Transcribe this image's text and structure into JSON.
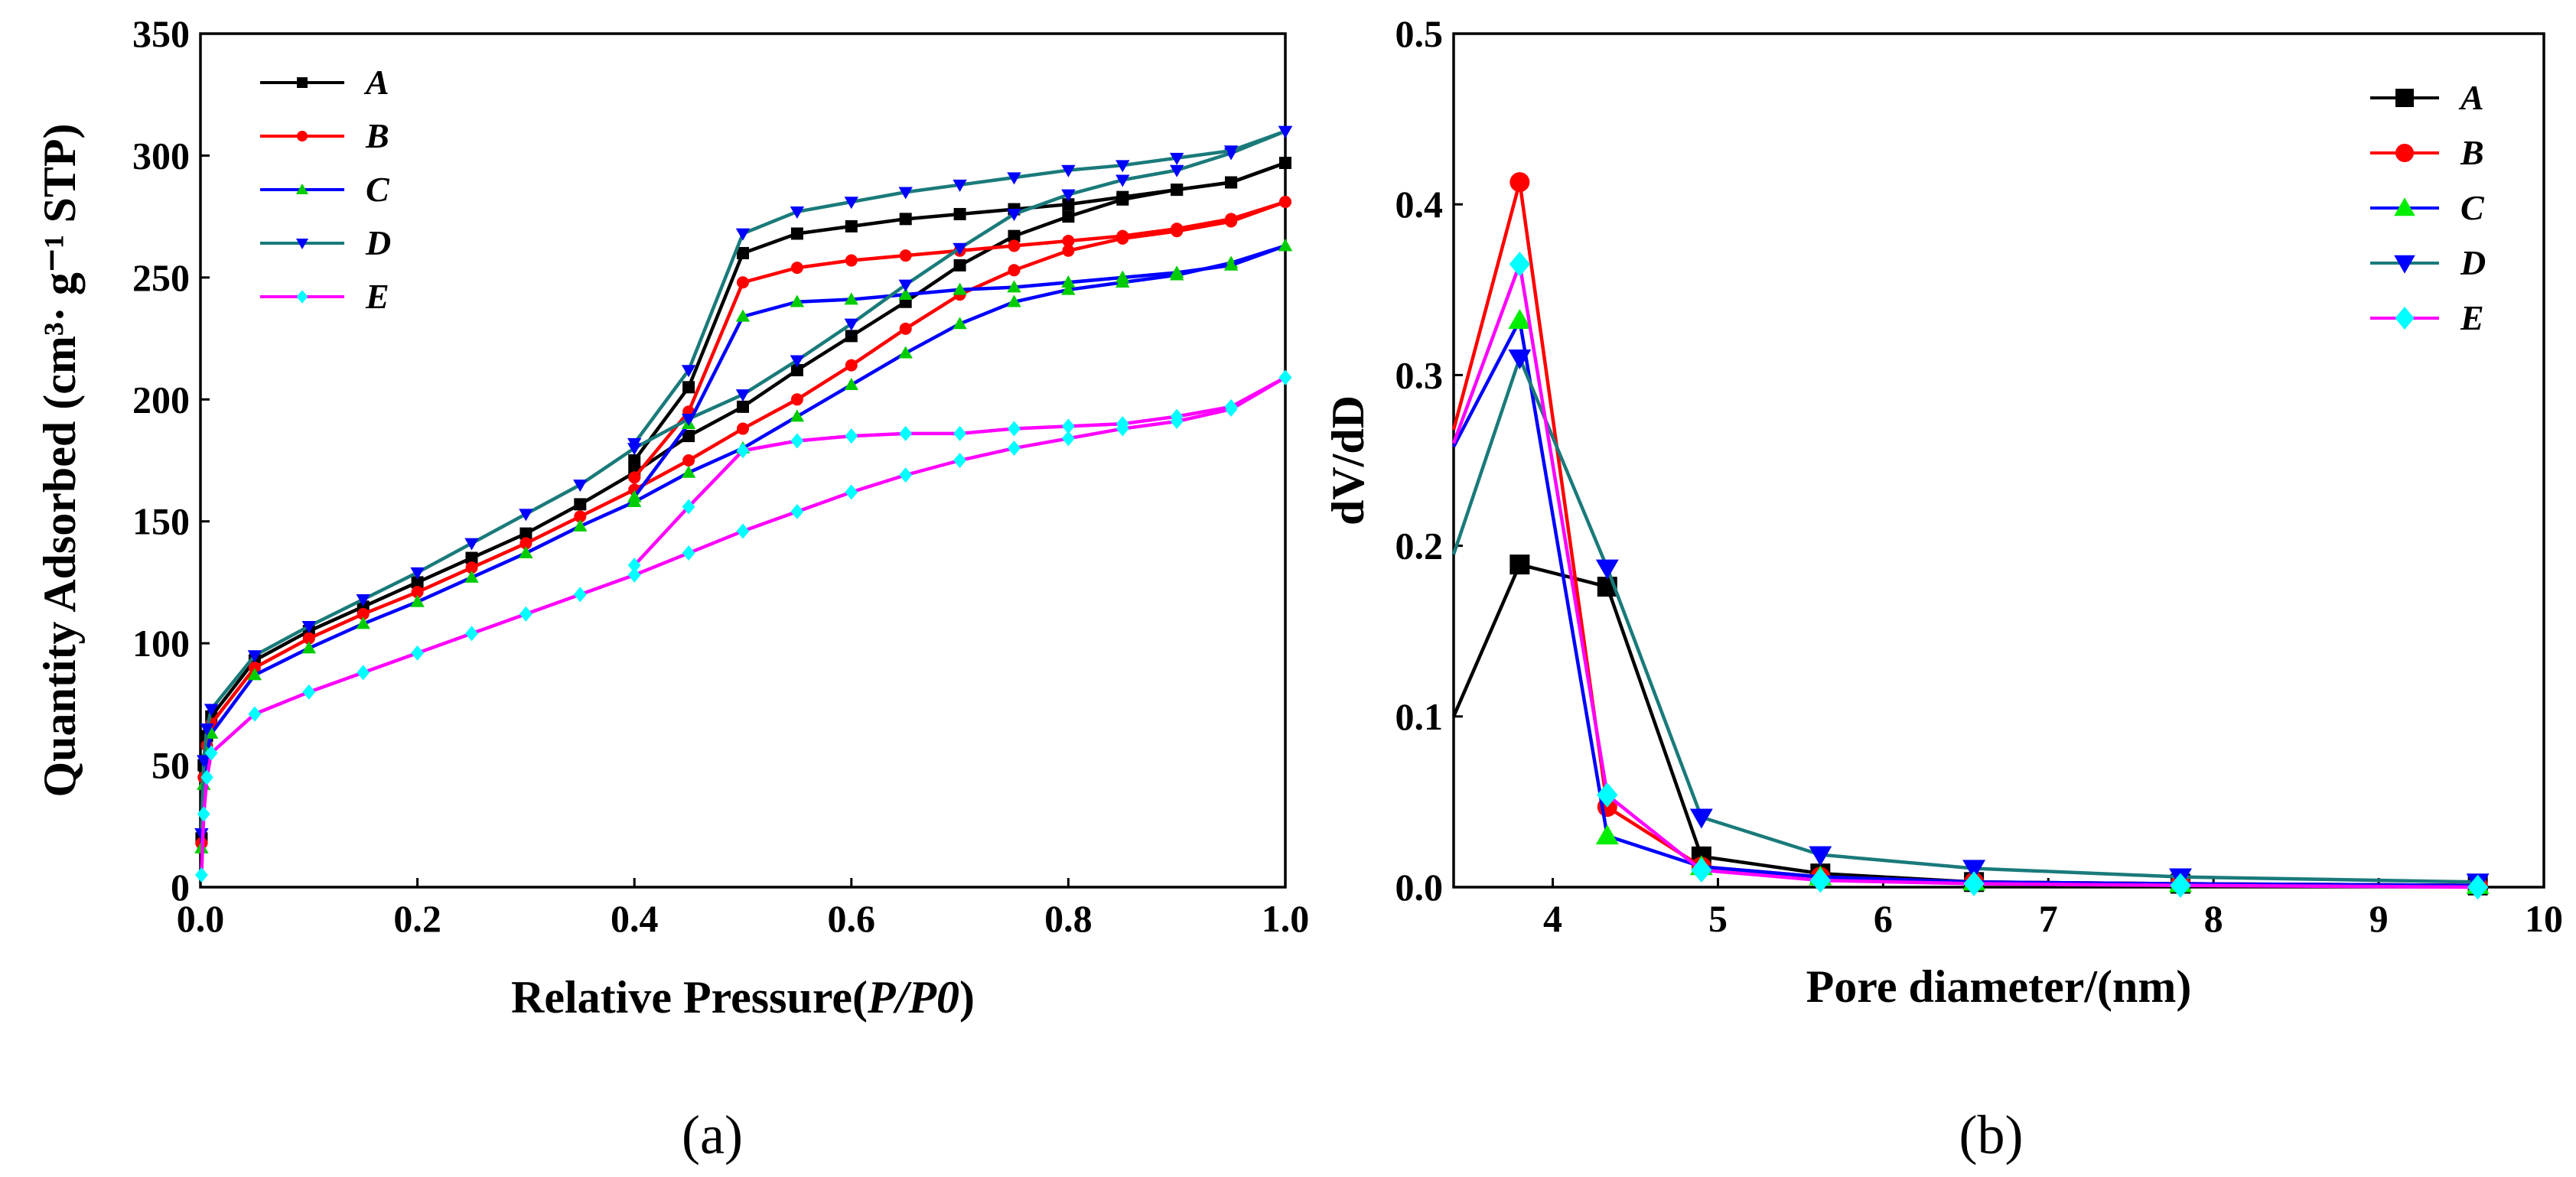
{
  "chart_data": [
    {
      "panel": "(a)",
      "type": "line",
      "xlabel_main": "Relative Pressure(",
      "xlabel_italic": "P/P0",
      "xlabel_end": ")",
      "ylabel_main": "Quantity  Adsorbed",
      "ylabel_units": "(cm³· g⁻¹ STP)",
      "xlim": [
        0,
        1.0
      ],
      "ylim": [
        0,
        350
      ],
      "xticks": [
        0.0,
        0.2,
        0.4,
        0.6,
        0.8,
        1.0
      ],
      "xtick_labels": [
        "0.0",
        "0.2",
        "0.4",
        "0.6",
        "0.8",
        "1.0"
      ],
      "yticks": [
        0,
        50,
        100,
        150,
        200,
        250,
        300,
        350
      ],
      "ytick_labels": [
        "0",
        "50",
        "100",
        "150",
        "200",
        "250",
        "300",
        "350"
      ],
      "legend": [
        "A",
        "B",
        "C",
        "D",
        "E"
      ],
      "series": [
        {
          "name": "A",
          "color": "#000000",
          "marker": "square",
          "adsorption": [
            [
              0.001,
              20
            ],
            [
              0.003,
              50
            ],
            [
              0.006,
              62
            ],
            [
              0.01,
              70
            ],
            [
              0.05,
              93
            ],
            [
              0.1,
              105
            ],
            [
              0.15,
              115
            ],
            [
              0.2,
              125
            ],
            [
              0.25,
              135
            ],
            [
              0.3,
              145
            ],
            [
              0.35,
              157
            ],
            [
              0.4,
              170
            ],
            [
              0.45,
              185
            ],
            [
              0.5,
              197
            ],
            [
              0.55,
              212
            ],
            [
              0.6,
              226
            ],
            [
              0.65,
              240
            ],
            [
              0.7,
              255
            ],
            [
              0.75,
              267
            ],
            [
              0.8,
              275
            ],
            [
              0.85,
              282
            ],
            [
              0.9,
              286
            ],
            [
              0.95,
              289
            ],
            [
              1.0,
              297
            ]
          ],
          "desorption": [
            [
              1.0,
              297
            ],
            [
              0.95,
              289
            ],
            [
              0.9,
              286
            ],
            [
              0.85,
              283
            ],
            [
              0.8,
              280
            ],
            [
              0.75,
              278
            ],
            [
              0.7,
              276
            ],
            [
              0.65,
              274
            ],
            [
              0.6,
              271
            ],
            [
              0.55,
              268
            ],
            [
              0.5,
              260
            ],
            [
              0.45,
              205
            ],
            [
              0.4,
              175
            ]
          ]
        },
        {
          "name": "B",
          "color": "#ff0000",
          "marker": "circle",
          "adsorption": [
            [
              0.001,
              18
            ],
            [
              0.003,
              45
            ],
            [
              0.006,
              58
            ],
            [
              0.01,
              67
            ],
            [
              0.05,
              90
            ],
            [
              0.1,
              102
            ],
            [
              0.15,
              112
            ],
            [
              0.2,
              121
            ],
            [
              0.25,
              131
            ],
            [
              0.3,
              141
            ],
            [
              0.35,
              152
            ],
            [
              0.4,
              163
            ],
            [
              0.45,
              175
            ],
            [
              0.5,
              188
            ],
            [
              0.55,
              200
            ],
            [
              0.6,
              214
            ],
            [
              0.65,
              229
            ],
            [
              0.7,
              243
            ],
            [
              0.75,
              253
            ],
            [
              0.8,
              261
            ],
            [
              0.85,
              266
            ],
            [
              0.9,
              269
            ],
            [
              0.95,
              273
            ],
            [
              1.0,
              281
            ]
          ],
          "desorption": [
            [
              1.0,
              281
            ],
            [
              0.95,
              274
            ],
            [
              0.9,
              270
            ],
            [
              0.85,
              267
            ],
            [
              0.8,
              265
            ],
            [
              0.75,
              263
            ],
            [
              0.7,
              261
            ],
            [
              0.65,
              259
            ],
            [
              0.6,
              257
            ],
            [
              0.55,
              254
            ],
            [
              0.5,
              248
            ],
            [
              0.45,
              195
            ],
            [
              0.4,
              168
            ]
          ]
        },
        {
          "name": "C",
          "color": "#0000ff",
          "marker": "triangle-up",
          "markerColor": "#00cc00",
          "adsorption": [
            [
              0.001,
              16
            ],
            [
              0.003,
              42
            ],
            [
              0.006,
              55
            ],
            [
              0.01,
              63
            ],
            [
              0.05,
              87
            ],
            [
              0.1,
              98
            ],
            [
              0.15,
              108
            ],
            [
              0.2,
              117
            ],
            [
              0.25,
              127
            ],
            [
              0.3,
              137
            ],
            [
              0.35,
              148
            ],
            [
              0.4,
              158
            ],
            [
              0.45,
              170
            ],
            [
              0.5,
              180
            ],
            [
              0.55,
              193
            ],
            [
              0.6,
              206
            ],
            [
              0.65,
              219
            ],
            [
              0.7,
              231
            ],
            [
              0.75,
              240
            ],
            [
              0.8,
              245
            ],
            [
              0.85,
              248
            ],
            [
              0.9,
              251
            ],
            [
              0.95,
              256
            ],
            [
              1.0,
              263
            ]
          ],
          "desorption": [
            [
              1.0,
              263
            ],
            [
              0.95,
              255
            ],
            [
              0.9,
              252
            ],
            [
              0.85,
              250
            ],
            [
              0.8,
              248
            ],
            [
              0.75,
              246
            ],
            [
              0.7,
              245
            ],
            [
              0.65,
              243
            ],
            [
              0.6,
              241
            ],
            [
              0.55,
              240
            ],
            [
              0.5,
              234
            ],
            [
              0.45,
              190
            ],
            [
              0.4,
              160
            ]
          ]
        },
        {
          "name": "D",
          "color": "#1a7a7a",
          "marker": "triangle-down",
          "markerColor": "#0000ff",
          "adsorption": [
            [
              0.001,
              22
            ],
            [
              0.003,
              52
            ],
            [
              0.006,
              65
            ],
            [
              0.01,
              73
            ],
            [
              0.05,
              95
            ],
            [
              0.1,
              107
            ],
            [
              0.15,
              118
            ],
            [
              0.2,
              129
            ],
            [
              0.25,
              141
            ],
            [
              0.3,
              153
            ],
            [
              0.35,
              165
            ],
            [
              0.4,
              180
            ],
            [
              0.45,
              192
            ],
            [
              0.5,
              202
            ],
            [
              0.55,
              216
            ],
            [
              0.6,
              231
            ],
            [
              0.65,
              247
            ],
            [
              0.7,
              262
            ],
            [
              0.75,
              276
            ],
            [
              0.8,
              284
            ],
            [
              0.85,
              290
            ],
            [
              0.9,
              294
            ],
            [
              0.95,
              301
            ],
            [
              1.0,
              310
            ]
          ],
          "desorption": [
            [
              1.0,
              310
            ],
            [
              0.95,
              302
            ],
            [
              0.9,
              299
            ],
            [
              0.85,
              296
            ],
            [
              0.8,
              294
            ],
            [
              0.75,
              291
            ],
            [
              0.7,
              288
            ],
            [
              0.65,
              285
            ],
            [
              0.6,
              281
            ],
            [
              0.55,
              277
            ],
            [
              0.5,
              268
            ],
            [
              0.45,
              212
            ],
            [
              0.4,
              182
            ]
          ]
        },
        {
          "name": "E",
          "color": "#ff00ff",
          "marker": "diamond",
          "markerColor": "#00ffff",
          "adsorption": [
            [
              0.001,
              5
            ],
            [
              0.003,
              30
            ],
            [
              0.006,
              45
            ],
            [
              0.01,
              55
            ],
            [
              0.05,
              71
            ],
            [
              0.1,
              80
            ],
            [
              0.15,
              88
            ],
            [
              0.2,
              96
            ],
            [
              0.25,
              104
            ],
            [
              0.3,
              112
            ],
            [
              0.35,
              120
            ],
            [
              0.4,
              128
            ],
            [
              0.45,
              137
            ],
            [
              0.5,
              146
            ],
            [
              0.55,
              154
            ],
            [
              0.6,
              162
            ],
            [
              0.65,
              169
            ],
            [
              0.7,
              175
            ],
            [
              0.75,
              180
            ],
            [
              0.8,
              184
            ],
            [
              0.85,
              188
            ],
            [
              0.9,
              191
            ],
            [
              0.95,
              196
            ],
            [
              1.0,
              209
            ]
          ],
          "desorption": [
            [
              1.0,
              209
            ],
            [
              0.95,
              197
            ],
            [
              0.9,
              193
            ],
            [
              0.85,
              190
            ],
            [
              0.8,
              189
            ],
            [
              0.75,
              188
            ],
            [
              0.7,
              186
            ],
            [
              0.65,
              186
            ],
            [
              0.6,
              185
            ],
            [
              0.55,
              183
            ],
            [
              0.5,
              179
            ],
            [
              0.45,
              156
            ],
            [
              0.4,
              132
            ]
          ]
        }
      ]
    },
    {
      "panel": "(b)",
      "type": "line",
      "xlabel": "Pore diameter/(nm)",
      "ylabel": "dV/dD",
      "xlim": [
        3.4,
        10
      ],
      "ylim": [
        0,
        0.5
      ],
      "xticks": [
        4,
        5,
        6,
        7,
        8,
        9,
        10
      ],
      "xtick_labels": [
        "4",
        "5",
        "6",
        "7",
        "8",
        "9",
        "10"
      ],
      "yticks": [
        0.0,
        0.1,
        0.2,
        0.3,
        0.4,
        0.5
      ],
      "ytick_labels": [
        "0.0",
        "0.1",
        "0.2",
        "0.3",
        "0.4",
        "0.5"
      ],
      "legend": [
        "A",
        "B",
        "C",
        "D",
        "E"
      ],
      "series": [
        {
          "name": "A",
          "color": "#000000",
          "marker": "square",
          "points": [
            [
              3.4,
              0.1
            ],
            [
              3.8,
              0.189
            ],
            [
              4.33,
              0.176
            ],
            [
              4.9,
              0.018
            ],
            [
              5.62,
              0.008
            ],
            [
              6.55,
              0.003
            ],
            [
              7.8,
              0.002
            ],
            [
              9.6,
              0.001
            ]
          ]
        },
        {
          "name": "B",
          "color": "#ff0000",
          "marker": "circle",
          "points": [
            [
              3.4,
              0.268
            ],
            [
              3.8,
              0.413
            ],
            [
              4.33,
              0.047
            ],
            [
              4.9,
              0.012
            ],
            [
              5.62,
              0.006
            ],
            [
              6.55,
              0.003
            ],
            [
              7.8,
              0.002
            ],
            [
              9.6,
              0.001
            ]
          ]
        },
        {
          "name": "C",
          "color": "#0000ff",
          "marker": "triangle-up",
          "markerColor": "#00ee00",
          "points": [
            [
              3.4,
              0.258
            ],
            [
              3.8,
              0.332
            ],
            [
              4.33,
              0.03
            ],
            [
              4.9,
              0.012
            ],
            [
              5.62,
              0.006
            ],
            [
              6.55,
              0.003
            ],
            [
              7.8,
              0.002
            ],
            [
              9.6,
              0.001
            ]
          ]
        },
        {
          "name": "D",
          "color": "#1a7a7a",
          "marker": "triangle-down",
          "markerColor": "#0000ff",
          "points": [
            [
              3.4,
              0.195
            ],
            [
              3.8,
              0.31
            ],
            [
              4.33,
              0.187
            ],
            [
              4.9,
              0.041
            ],
            [
              5.62,
              0.019
            ],
            [
              6.55,
              0.011
            ],
            [
              7.8,
              0.006
            ],
            [
              9.6,
              0.003
            ]
          ]
        },
        {
          "name": "E",
          "color": "#ff00ff",
          "marker": "diamond",
          "markerColor": "#00ffff",
          "points": [
            [
              3.4,
              0.26
            ],
            [
              3.8,
              0.365
            ],
            [
              4.33,
              0.054
            ],
            [
              4.9,
              0.01
            ],
            [
              5.62,
              0.004
            ],
            [
              6.55,
              0.002
            ],
            [
              7.8,
              0.001
            ],
            [
              9.6,
              0.0
            ]
          ]
        }
      ]
    }
  ]
}
